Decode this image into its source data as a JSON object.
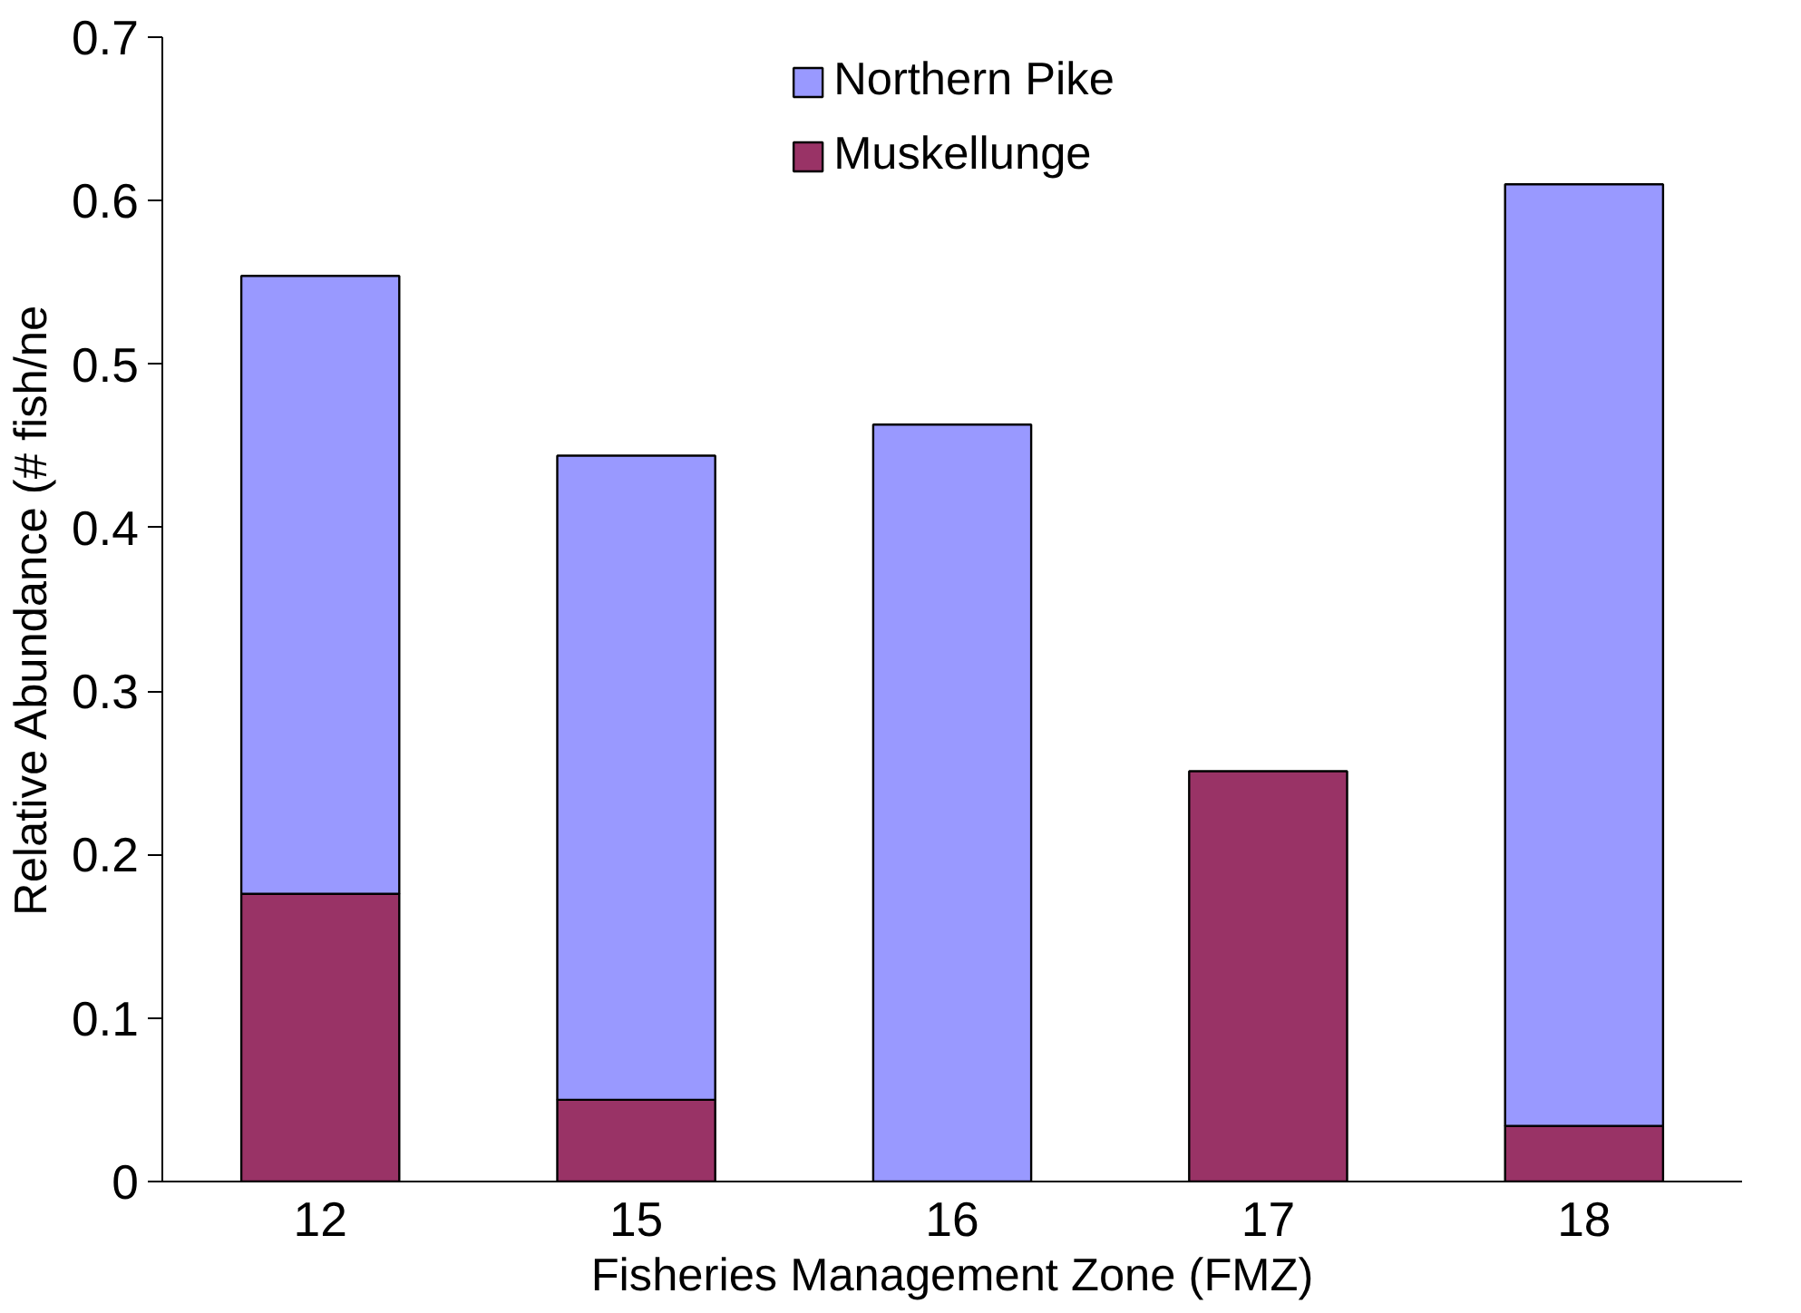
{
  "chart_data": {
    "type": "bar",
    "stacked": true,
    "xlabel": "Fisheries Management Zone (FMZ)",
    "ylabel": "Relative Abundance (# fish/ne",
    "categories": [
      "12",
      "15",
      "16",
      "17",
      "18"
    ],
    "series": [
      {
        "name": "Muskellunge",
        "color": "#993366",
        "values": [
          0.176,
          0.05,
          0,
          0.251,
          0.034
        ]
      },
      {
        "name": "Northern Pike",
        "color": "#9999ff",
        "values": [
          0.378,
          0.394,
          0.463,
          0,
          0.576
        ]
      }
    ],
    "ylim": [
      0,
      0.7
    ],
    "yticks": [
      {
        "value": 0,
        "label": "0"
      },
      0.1,
      0.2,
      0.3,
      0.4,
      0.5,
      0.6,
      0.7
    ],
    "grid": false,
    "legend": "top"
  }
}
